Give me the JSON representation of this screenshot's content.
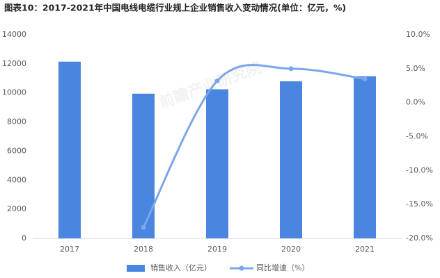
{
  "chart_data": {
    "type": "bar",
    "title": "图表10：2017-2021年中国电线电缆行业规上企业销售收入变动情况(单位：亿元，%)",
    "watermark": "前瞻产业研究院",
    "categories": [
      "2017",
      "2018",
      "2019",
      "2020",
      "2021"
    ],
    "series": [
      {
        "name": "销售收入（亿元）",
        "type": "bar",
        "color": "#4a86e0",
        "values": [
          12150,
          9950,
          10250,
          10800,
          11150
        ]
      },
      {
        "name": "同比增速（%）",
        "type": "line",
        "axis": "y2",
        "color": "#7aa6ea",
        "values": [
          null,
          -18.4,
          3.2,
          5.0,
          3.5
        ]
      }
    ],
    "ylim": [
      0,
      14000
    ],
    "yticks": [
      0,
      2000,
      4000,
      6000,
      8000,
      10000,
      12000,
      14000
    ],
    "y2lim": [
      -20,
      10
    ],
    "y2ticks": [
      {
        "value": -20,
        "label": "-20.0%"
      },
      {
        "value": -15,
        "label": "-15.0%"
      },
      {
        "value": -10,
        "label": "-10.0%"
      },
      {
        "value": -5,
        "label": "-5.0%"
      },
      {
        "value": 0,
        "label": "0.0%"
      },
      {
        "value": 5,
        "label": "5.0%"
      },
      {
        "value": 10,
        "label": "10.0%"
      }
    ],
    "grid": false,
    "legend": "bottom"
  }
}
